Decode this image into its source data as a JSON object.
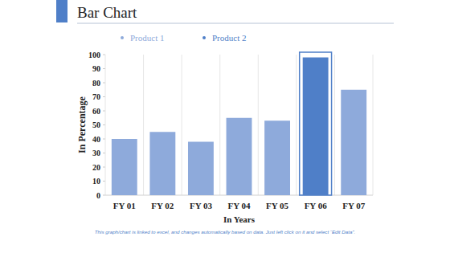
{
  "chart_data": {
    "type": "bar",
    "title": "Bar Chart",
    "x_label": "In Years",
    "y_label": "In Percentage",
    "annotations": [
      "This graph/chart is linked to excel, and changes automatically based on data. Just left click on it and select “Edit Data”."
    ],
    "categories": [
      "FY 01",
      "FY 02",
      "FY 03",
      "FY 04",
      "FY 05",
      "FY 06",
      "FY 07"
    ],
    "series": [
      {
        "name": "Product 1",
        "color": "#8eaadb",
        "values": [
          40,
          45,
          38,
          55,
          53,
          null,
          75
        ]
      },
      {
        "name": "Product 2",
        "color": "#4f7fc8",
        "values": [
          null,
          null,
          null,
          null,
          null,
          98,
          null
        ]
      }
    ],
    "ylim": [
      0,
      100
    ],
    "yticks": [
      0,
      10,
      20,
      30,
      40,
      50,
      60,
      70,
      80,
      90,
      100
    ],
    "grid": true,
    "legend": "top"
  }
}
